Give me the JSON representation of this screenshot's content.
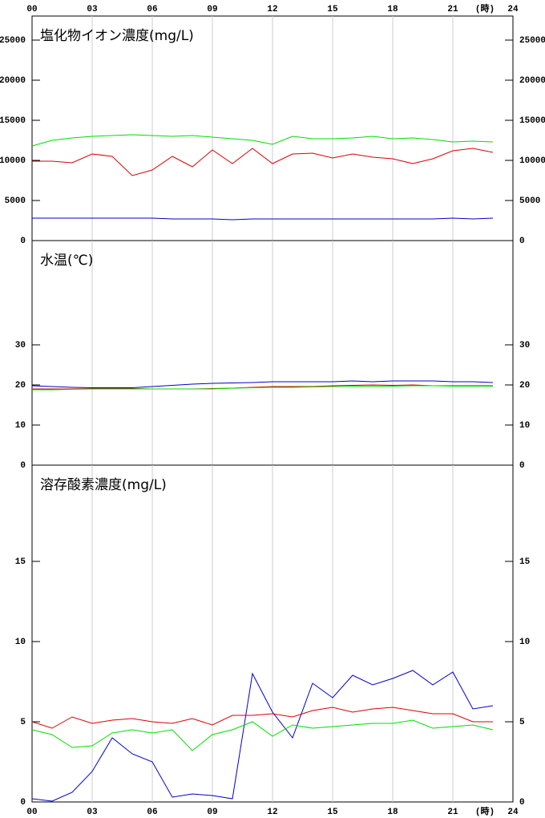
{
  "chart_data": [
    {
      "type": "line",
      "title": "塩化物イオン濃度(mg/L)",
      "x": [
        0,
        1,
        2,
        3,
        4,
        5,
        6,
        7,
        8,
        9,
        10,
        11,
        12,
        13,
        14,
        15,
        16,
        17,
        18,
        19,
        20,
        21,
        22,
        23
      ],
      "xlim": [
        0,
        24
      ],
      "xticks": [
        {
          "value": 0,
          "label": "00"
        },
        {
          "value": 3,
          "label": "03"
        },
        {
          "value": 6,
          "label": "06"
        },
        {
          "value": 9,
          "label": "09"
        },
        12,
        15,
        18,
        21,
        24
      ],
      "xtick_position": "top",
      "x_unit": "(時)",
      "ylim": [
        0,
        28000
      ],
      "yticks": [
        0,
        5000,
        10000,
        15000,
        20000,
        25000
      ],
      "grid": true,
      "series": [
        {
          "color": "#00dd00",
          "values": [
            11800,
            12500,
            12800,
            13000,
            13100,
            13200,
            13100,
            13000,
            13100,
            12900,
            12700,
            12500,
            12000,
            13000,
            12700,
            12700,
            12800,
            13000,
            12700,
            12800,
            12600,
            12300,
            12400,
            12300
          ]
        },
        {
          "color": "#dd0000",
          "values": [
            9900,
            9900,
            9700,
            10800,
            10500,
            8100,
            8800,
            10500,
            9200,
            11300,
            9600,
            11500,
            9600,
            10800,
            10900,
            10300,
            10800,
            10400,
            10200,
            9600,
            10200,
            11200,
            11500,
            11000
          ]
        },
        {
          "color": "#0000cc",
          "values": [
            2800,
            2800,
            2800,
            2800,
            2800,
            2800,
            2800,
            2700,
            2700,
            2700,
            2600,
            2700,
            2700,
            2700,
            2700,
            2700,
            2700,
            2700,
            2700,
            2700,
            2700,
            2800,
            2700,
            2800
          ]
        }
      ]
    },
    {
      "type": "line",
      "title": "水温(℃)",
      "x": [
        0,
        1,
        2,
        3,
        4,
        5,
        6,
        7,
        8,
        9,
        10,
        11,
        12,
        13,
        14,
        15,
        16,
        17,
        18,
        19,
        20,
        21,
        22,
        23
      ],
      "xlim": [
        0,
        24
      ],
      "xticks": [
        0,
        3,
        6,
        9,
        12,
        15,
        18,
        21,
        24
      ],
      "ylim": [
        0,
        56
      ],
      "yticks": [
        0,
        10,
        20,
        30
      ],
      "grid": true,
      "series": [
        {
          "color": "#0000cc",
          "values": [
            19.8,
            19.6,
            19.4,
            19.3,
            19.3,
            19.3,
            19.6,
            19.9,
            20.2,
            20.4,
            20.5,
            20.6,
            20.8,
            20.8,
            20.8,
            20.8,
            21.0,
            20.8,
            21.0,
            21.0,
            21.0,
            20.8,
            20.8,
            20.6
          ]
        },
        {
          "color": "#dd0000",
          "values": [
            19,
            19,
            19,
            19.1,
            19.1,
            19.1,
            19,
            19,
            19,
            19.1,
            19.2,
            19.4,
            19.6,
            19.6,
            19.6,
            19.8,
            19.9,
            20,
            19.9,
            20,
            19.8,
            19.8,
            19.8,
            19.8
          ]
        },
        {
          "color": "#00dd00",
          "values": [
            18.8,
            18.8,
            18.9,
            19,
            19,
            19,
            19,
            19,
            19,
            19,
            19.2,
            19.3,
            19.4,
            19.4,
            19.5,
            19.6,
            19.7,
            19.7,
            19.7,
            19.8,
            19.8,
            19.7,
            19.7,
            19.7
          ]
        }
      ]
    },
    {
      "type": "line",
      "title": "溶存酸素濃度(mg/L)",
      "x": [
        0,
        1,
        2,
        3,
        4,
        5,
        6,
        7,
        8,
        9,
        10,
        11,
        12,
        13,
        14,
        15,
        16,
        17,
        18,
        19,
        20,
        21,
        22,
        23
      ],
      "xlim": [
        0,
        24
      ],
      "xticks": [
        {
          "value": 0,
          "label": "00"
        },
        {
          "value": 3,
          "label": "03"
        },
        {
          "value": 6,
          "label": "06"
        },
        {
          "value": 9,
          "label": "09"
        },
        12,
        15,
        18,
        21,
        24
      ],
      "xtick_position": "bottom",
      "x_unit": "(時)",
      "ylim": [
        0,
        21
      ],
      "yticks": [
        0,
        5,
        10,
        15
      ],
      "grid": true,
      "series": [
        {
          "color": "#0000cc",
          "values": [
            0.2,
            0.05,
            0.6,
            1.9,
            4.0,
            3.0,
            2.5,
            0.3,
            0.5,
            0.4,
            0.2,
            8.0,
            5.6,
            4.0,
            7.4,
            6.5,
            7.9,
            7.3,
            7.7,
            8.2,
            7.3,
            8.1,
            5.8,
            6.0
          ]
        },
        {
          "color": "#dd0000",
          "values": [
            5.0,
            4.6,
            5.3,
            4.9,
            5.1,
            5.2,
            5.0,
            4.9,
            5.2,
            4.8,
            5.4,
            5.4,
            5.5,
            5.3,
            5.7,
            5.9,
            5.6,
            5.8,
            5.9,
            5.7,
            5.5,
            5.5,
            5.0,
            5.0
          ]
        },
        {
          "color": "#00dd00",
          "values": [
            4.5,
            4.2,
            3.4,
            3.5,
            4.3,
            4.5,
            4.3,
            4.5,
            3.2,
            4.2,
            4.5,
            5.0,
            4.1,
            4.8,
            4.6,
            4.7,
            4.8,
            4.9,
            4.9,
            5.1,
            4.6,
            4.7,
            4.8,
            4.5
          ]
        }
      ]
    }
  ]
}
